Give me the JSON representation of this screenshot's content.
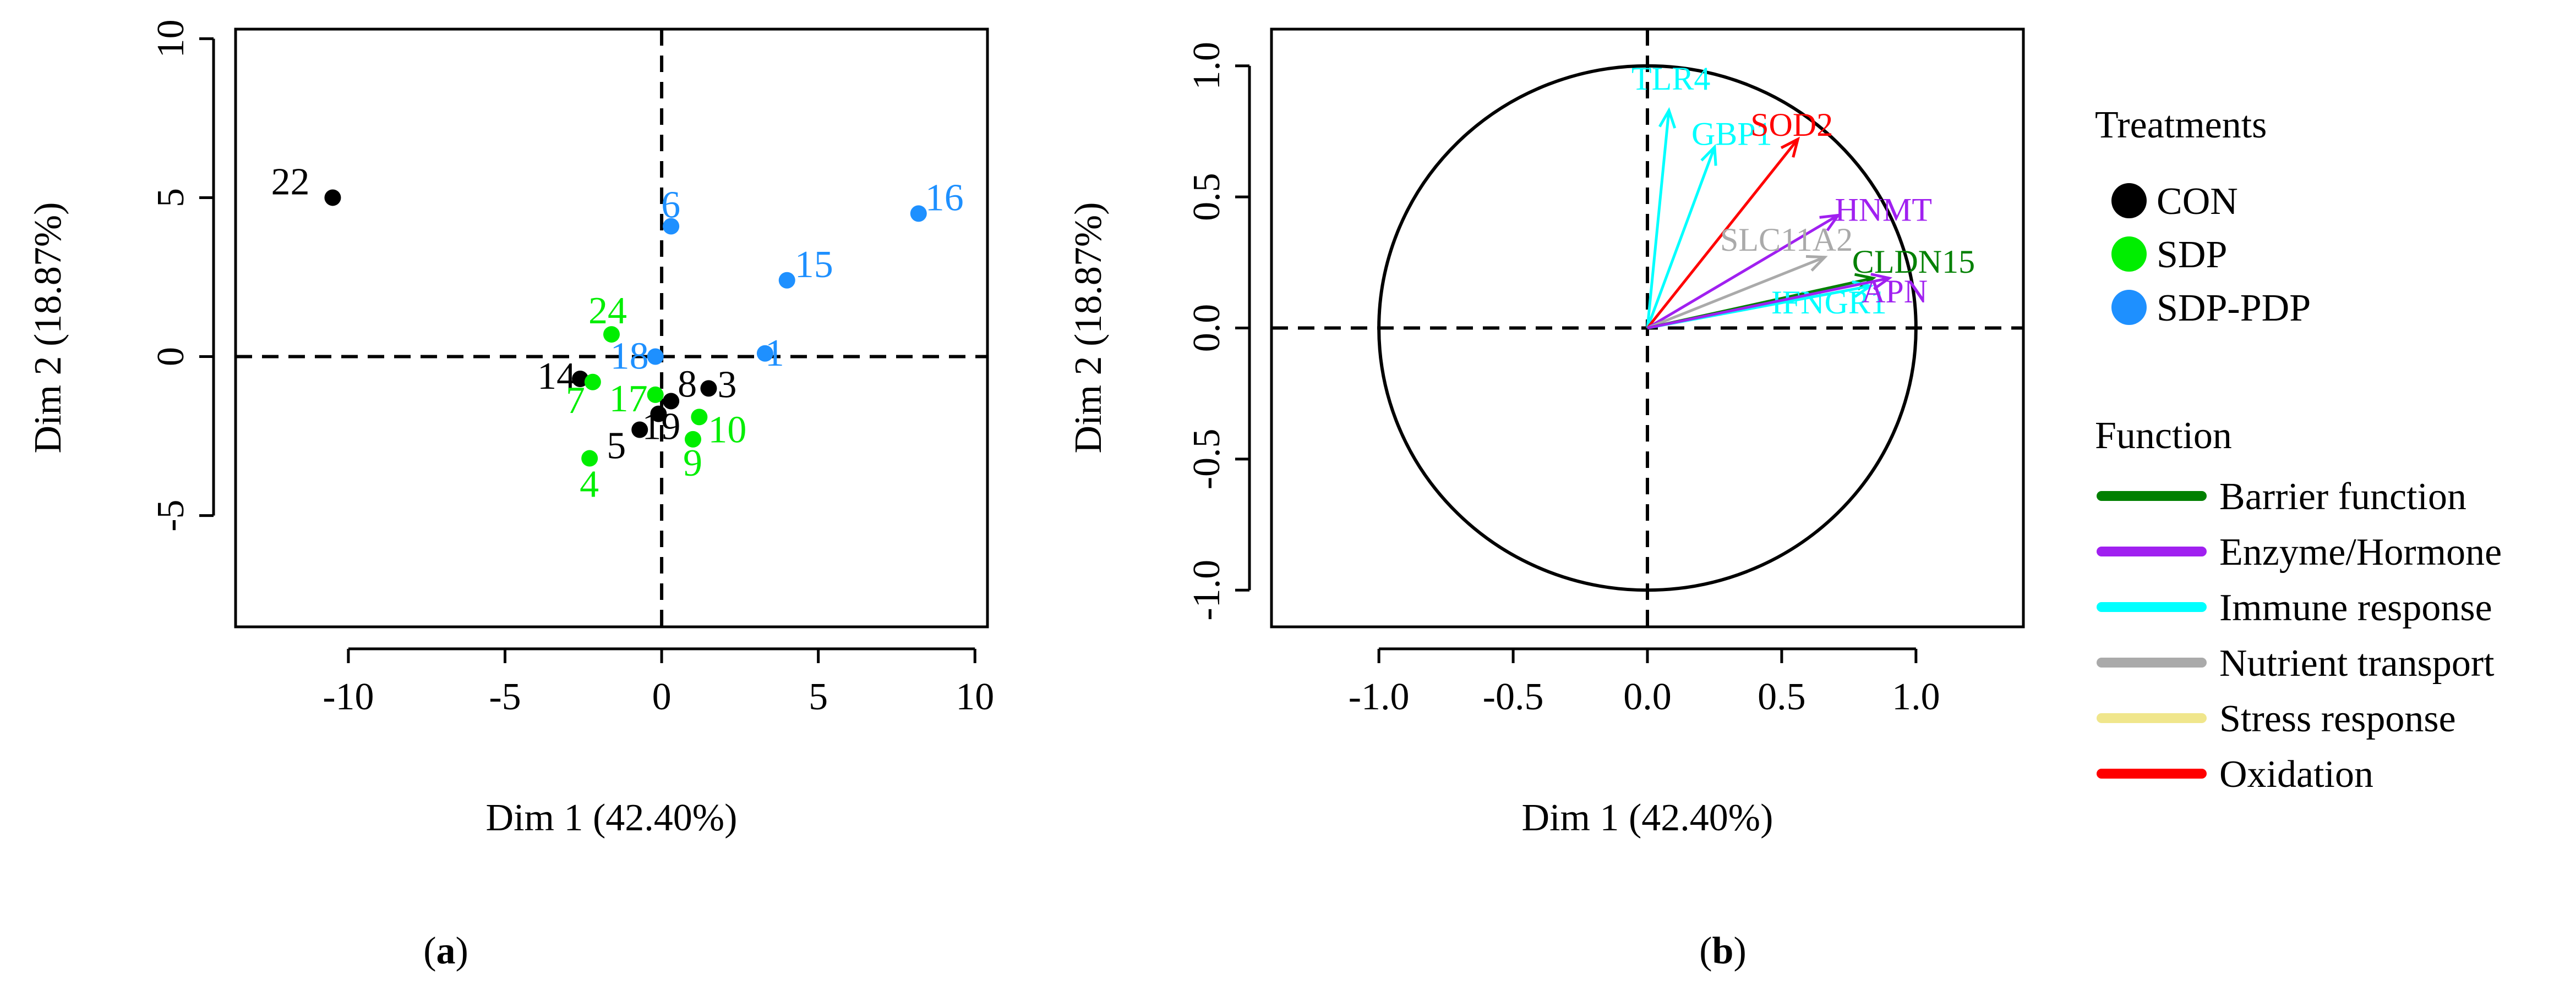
{
  "chart_data": [
    {
      "type": "scatter",
      "panel_label": "a",
      "title": "",
      "xlabel": "Dim 1 (42.40%)",
      "ylabel": "Dim 2 (18.87%)",
      "xlim": [
        -13.6,
        10.4
      ],
      "ylim": [
        -8.5,
        10.3
      ],
      "xticks": [
        -10,
        -5,
        0,
        5,
        10
      ],
      "yticks": [
        -5,
        0,
        5,
        10
      ],
      "xtick_labels": [
        "-10",
        "-5",
        "0",
        "5",
        "10"
      ],
      "ytick_labels": [
        "-5",
        "0",
        "5",
        "10"
      ],
      "points": [
        {
          "label": "22",
          "group": "CON",
          "x": -10.5,
          "y": 5.0
        },
        {
          "label": "14",
          "group": "CON",
          "x": -2.6,
          "y": -0.7
        },
        {
          "label": "5",
          "group": "CON",
          "x": -0.7,
          "y": -2.3
        },
        {
          "label": "19",
          "group": "CON",
          "x": -0.1,
          "y": -1.8
        },
        {
          "label": "8",
          "group": "CON",
          "x": 0.3,
          "y": -1.4
        },
        {
          "label": "3",
          "group": "CON",
          "x": 1.5,
          "y": -1.0
        },
        {
          "label": "24",
          "group": "SDP",
          "x": -1.6,
          "y": 0.7
        },
        {
          "label": "7",
          "group": "SDP",
          "x": -2.2,
          "y": -0.8
        },
        {
          "label": "17",
          "group": "SDP",
          "x": -0.2,
          "y": -1.2
        },
        {
          "label": "4",
          "group": "SDP",
          "x": -2.3,
          "y": -3.2
        },
        {
          "label": "9",
          "group": "SDP",
          "x": 1.0,
          "y": -2.6
        },
        {
          "label": "10",
          "group": "SDP",
          "x": 1.2,
          "y": -1.9
        },
        {
          "label": "6",
          "group": "SDP-PDP",
          "x": 0.3,
          "y": 4.1
        },
        {
          "label": "16",
          "group": "SDP-PDP",
          "x": 8.2,
          "y": 4.5
        },
        {
          "label": "15",
          "group": "SDP-PDP",
          "x": 4.0,
          "y": 2.4
        },
        {
          "label": "18",
          "group": "SDP-PDP",
          "x": -0.2,
          "y": 0.0
        },
        {
          "label": "1",
          "group": "SDP-PDP",
          "x": 3.3,
          "y": 0.1
        }
      ]
    },
    {
      "type": "biplot",
      "panel_label": "b",
      "title": "",
      "xlabel": "Dim 1 (42.40%)",
      "ylabel": "Dim 2 (18.87%)",
      "xlim": [
        -1.4,
        1.4
      ],
      "ylim": [
        -1.14,
        1.14
      ],
      "xticks": [
        -1.0,
        -0.5,
        0.0,
        0.5,
        1.0
      ],
      "yticks": [
        -1.0,
        -0.5,
        0.0,
        0.5,
        1.0
      ],
      "xtick_labels": [
        "-1.0",
        "-0.5",
        "0.0",
        "0.5",
        "1.0"
      ],
      "ytick_labels": [
        "-1.0",
        "-0.5",
        "0.0",
        "0.5",
        "1.0"
      ],
      "circle_radius": 1.0,
      "arrows": [
        {
          "label": "TLR4",
          "function": "Immune response",
          "x": 0.08,
          "y": 0.83
        },
        {
          "label": "GBP1",
          "function": "Immune response",
          "x": 0.25,
          "y": 0.69
        },
        {
          "label": "SOD2",
          "function": "Oxidation",
          "x": 0.56,
          "y": 0.72
        },
        {
          "label": "HNMT",
          "function": "Enzyme/Hormone",
          "x": 0.71,
          "y": 0.43
        },
        {
          "label": "SLC11A2",
          "function": "Nutrient transport",
          "x": 0.66,
          "y": 0.27
        },
        {
          "label": "CLDN15",
          "function": "Barrier function",
          "x": 0.84,
          "y": 0.19
        },
        {
          "label": "IFNGR1",
          "function": "Immune response",
          "x": 0.83,
          "y": 0.16
        },
        {
          "label": "APN",
          "function": "Enzyme/Hormone",
          "x": 0.9,
          "y": 0.19
        }
      ]
    }
  ],
  "legend": {
    "treatments_title": "Treatments",
    "treatments": [
      {
        "name": "CON",
        "color": "#000000"
      },
      {
        "name": "SDP",
        "color": "#00ee00"
      },
      {
        "name": "SDP-PDP",
        "color": "#1e90ff"
      }
    ],
    "function_title": "Function",
    "functions": [
      {
        "name": "Barrier function",
        "color": "#008000"
      },
      {
        "name": "Enzyme/Hormone",
        "color": "#a020f0"
      },
      {
        "name": "Immune response",
        "color": "#00ffff"
      },
      {
        "name": "Nutrient transport",
        "color": "#aaaaaa"
      },
      {
        "name": "Stress response",
        "color": "#f0e68c"
      },
      {
        "name": "Oxidation",
        "color": "#ff0000"
      }
    ]
  },
  "captions": {
    "a_prefix": "(",
    "a_letter": "a",
    "a_suffix": ")",
    "b_prefix": "(",
    "b_letter": "b",
    "b_suffix": ")"
  }
}
